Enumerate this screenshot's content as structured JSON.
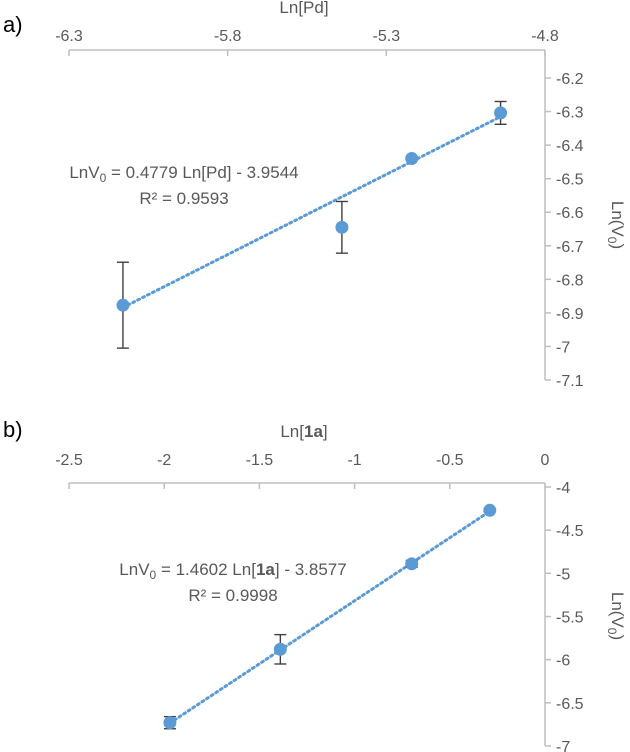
{
  "chart_data": [
    {
      "type": "scatter",
      "panel_label": "a)",
      "xlabel": "Ln[Pd]",
      "xlabel_parts": [
        {
          "text": "Ln[Pd]",
          "bold": false
        }
      ],
      "ylabel": "Ln(V0)",
      "ylabel_parts": [
        {
          "text": "Ln(V",
          "sub": false
        },
        {
          "text": "0",
          "sub": true
        },
        {
          "text": ")",
          "sub": false
        }
      ],
      "xlim": [
        -6.3,
        -4.8
      ],
      "xticks": [
        -6.3,
        -5.8,
        -5.3,
        -4.8
      ],
      "ylim": [
        -7.1,
        -6.2
      ],
      "yticks": [
        -7.1,
        -7,
        -6.9,
        -6.8,
        -6.7,
        -6.6,
        -6.5,
        -6.4,
        -6.3,
        -6.2
      ],
      "x_axis_position": "top",
      "y_axis_position": "right",
      "y_reversed": true,
      "grid": false,
      "marker_color": "#5b9bd5",
      "trendline_color": "#5b9bd5",
      "errorbar_color": "#404040",
      "points": [
        {
          "x": -6.13,
          "y": -6.877,
          "err": 0.128
        },
        {
          "x": -5.44,
          "y": -6.645,
          "err": 0.077
        },
        {
          "x": -5.22,
          "y": -6.44,
          "err": 0
        },
        {
          "x": -4.94,
          "y": -6.304,
          "err": 0.034
        }
      ],
      "trendline": {
        "slope": 0.4779,
        "intercept": -3.9544,
        "x_range": [
          -6.13,
          -4.94
        ]
      },
      "equation_line1_parts": [
        {
          "text": "LnV",
          "bold": false,
          "sub": false
        },
        {
          "text": "0",
          "bold": false,
          "sub": true
        },
        {
          "text": " = 0.4779 Ln[Pd] - 3.9544",
          "bold": false,
          "sub": false
        }
      ],
      "equation_line2": "R² = 0.9593"
    },
    {
      "type": "scatter",
      "panel_label": "b)",
      "xlabel": "Ln[1a]",
      "xlabel_parts": [
        {
          "text": "Ln[",
          "bold": false
        },
        {
          "text": "1a",
          "bold": true
        },
        {
          "text": "]",
          "bold": false
        }
      ],
      "ylabel": "Ln(V0)",
      "ylabel_parts": [
        {
          "text": "Ln(V",
          "sub": false
        },
        {
          "text": "0",
          "sub": true
        },
        {
          "text": ")",
          "sub": false
        }
      ],
      "xlim": [
        -2.5,
        0
      ],
      "xticks": [
        -2.5,
        -2,
        -1.5,
        -1,
        -0.5,
        0
      ],
      "ylim": [
        -7,
        -4
      ],
      "yticks": [
        -7,
        -6.5,
        -6,
        -5.5,
        -5,
        -4.5,
        -4
      ],
      "x_axis_position": "top",
      "y_axis_position": "right",
      "y_reversed": true,
      "grid": false,
      "marker_color": "#5b9bd5",
      "trendline_color": "#5b9bd5",
      "errorbar_color": "#404040",
      "points": [
        {
          "x": -1.97,
          "y": -6.73,
          "err": 0.07
        },
        {
          "x": -1.39,
          "y": -5.88,
          "err": 0.17
        },
        {
          "x": -0.7,
          "y": -4.89,
          "err": 0.04
        },
        {
          "x": -0.29,
          "y": -4.27,
          "err": 0
        }
      ],
      "trendline": {
        "slope": 1.4602,
        "intercept": -3.8577,
        "x_range": [
          -1.97,
          -0.29
        ]
      },
      "equation_line1_parts": [
        {
          "text": "LnV",
          "bold": false,
          "sub": false
        },
        {
          "text": "0",
          "bold": false,
          "sub": true
        },
        {
          "text": " = 1.4602 Ln[",
          "bold": false,
          "sub": false
        },
        {
          "text": "1a",
          "bold": true,
          "sub": false
        },
        {
          "text": "] - 3.8577",
          "bold": false,
          "sub": false
        }
      ],
      "equation_line2": "R² = 0.9998"
    }
  ]
}
